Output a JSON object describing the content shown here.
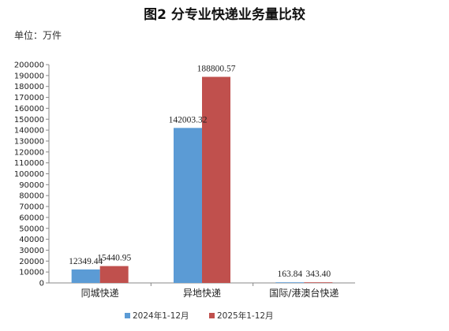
{
  "chart_data": {
    "type": "bar",
    "title": "图2 分专业快递业务量比较",
    "unit_label": "单位：万件",
    "categories": [
      "同城快递",
      "异地快递",
      "国际/港澳台快递"
    ],
    "series": [
      {
        "name": "2024年1-12月",
        "color": "#5b9bd5",
        "values": [
          12349.44,
          142003.32,
          163.84
        ],
        "value_labels": [
          "12349.44",
          "142003.32",
          "163.84"
        ]
      },
      {
        "name": "2025年1-12月",
        "color": "#c0504d",
        "values": [
          15440.95,
          188800.57,
          343.4
        ],
        "value_labels": [
          "15440.95",
          "188800.57",
          "343.40"
        ]
      }
    ],
    "ylim": [
      0,
      200000
    ],
    "y_ticks": [
      0,
      10000,
      20000,
      30000,
      40000,
      50000,
      60000,
      70000,
      80000,
      90000,
      100000,
      110000,
      120000,
      130000,
      140000,
      150000,
      160000,
      170000,
      180000,
      190000,
      200000
    ],
    "grid": false,
    "legend_position": "bottom"
  }
}
